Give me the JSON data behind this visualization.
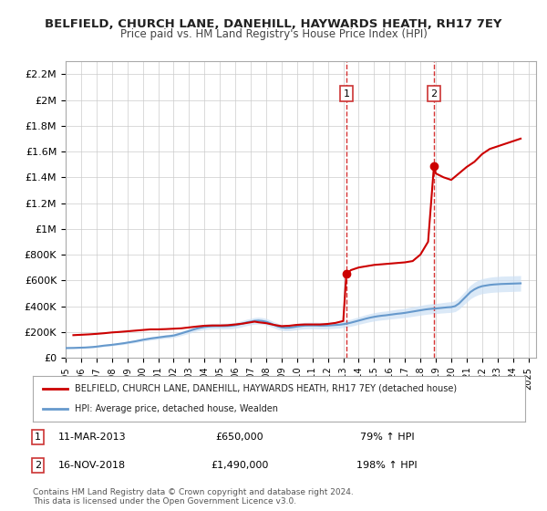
{
  "title": "BELFIELD, CHURCH LANE, DANEHILL, HAYWARDS HEATH, RH17 7EY",
  "subtitle": "Price paid vs. HM Land Registry's House Price Index (HPI)",
  "legend_label_red": "BELFIELD, CHURCH LANE, DANEHILL, HAYWARDS HEATH, RH17 7EY (detached house)",
  "legend_label_blue": "HPI: Average price, detached house, Wealden",
  "annotation1_label": "1",
  "annotation1_date": "11-MAR-2013",
  "annotation1_price": "£650,000",
  "annotation1_hpi": "79% ↑ HPI",
  "annotation2_label": "2",
  "annotation2_date": "16-NOV-2018",
  "annotation2_price": "£1,490,000",
  "annotation2_hpi": "198% ↑ HPI",
  "copyright": "Contains HM Land Registry data © Crown copyright and database right 2024.\nThis data is licensed under the Open Government Licence v3.0.",
  "xmin": 1995.0,
  "xmax": 2025.5,
  "ymin": 0,
  "ymax": 2300000,
  "yticks": [
    0,
    200000,
    400000,
    600000,
    800000,
    1000000,
    1200000,
    1400000,
    1600000,
    1800000,
    2000000,
    2200000
  ],
  "ytick_labels": [
    "£0",
    "£200K",
    "£400K",
    "£600K",
    "£800K",
    "£1M",
    "£1.2M",
    "£1.4M",
    "£1.6M",
    "£1.8M",
    "£2M",
    "£2.2M"
  ],
  "xticks": [
    1995,
    1996,
    1997,
    1998,
    1999,
    2000,
    2001,
    2002,
    2003,
    2004,
    2005,
    2006,
    2007,
    2008,
    2009,
    2010,
    2011,
    2012,
    2013,
    2014,
    2015,
    2016,
    2017,
    2018,
    2019,
    2020,
    2021,
    2022,
    2023,
    2024,
    2025
  ],
  "sale1_x": 2013.2,
  "sale1_y": 650000,
  "sale2_x": 2018.88,
  "sale2_y": 1490000,
  "red_color": "#cc0000",
  "blue_color": "#6699cc",
  "blue_fill_color": "#cce0f5",
  "vline_color": "#cc0000",
  "background_color": "#ffffff",
  "grid_color": "#cccccc",
  "hpi_x": [
    1995.0,
    1995.25,
    1995.5,
    1995.75,
    1996.0,
    1996.25,
    1996.5,
    1996.75,
    1997.0,
    1997.25,
    1997.5,
    1997.75,
    1998.0,
    1998.25,
    1998.5,
    1998.75,
    1999.0,
    1999.25,
    1999.5,
    1999.75,
    2000.0,
    2000.25,
    2000.5,
    2000.75,
    2001.0,
    2001.25,
    2001.5,
    2001.75,
    2002.0,
    2002.25,
    2002.5,
    2002.75,
    2003.0,
    2003.25,
    2003.5,
    2003.75,
    2004.0,
    2004.25,
    2004.5,
    2004.75,
    2005.0,
    2005.25,
    2005.5,
    2005.75,
    2006.0,
    2006.25,
    2006.5,
    2006.75,
    2007.0,
    2007.25,
    2007.5,
    2007.75,
    2008.0,
    2008.25,
    2008.5,
    2008.75,
    2009.0,
    2009.25,
    2009.5,
    2009.75,
    2010.0,
    2010.25,
    2010.5,
    2010.75,
    2011.0,
    2011.25,
    2011.5,
    2011.75,
    2012.0,
    2012.25,
    2012.5,
    2012.75,
    2013.0,
    2013.25,
    2013.5,
    2013.75,
    2014.0,
    2014.25,
    2014.5,
    2014.75,
    2015.0,
    2015.25,
    2015.5,
    2015.75,
    2016.0,
    2016.25,
    2016.5,
    2016.75,
    2017.0,
    2017.25,
    2017.5,
    2017.75,
    2018.0,
    2018.25,
    2018.5,
    2018.75,
    2019.0,
    2019.25,
    2019.5,
    2019.75,
    2020.0,
    2020.25,
    2020.5,
    2020.75,
    2021.0,
    2021.25,
    2021.5,
    2021.75,
    2022.0,
    2022.25,
    2022.5,
    2022.75,
    2023.0,
    2023.25,
    2023.5,
    2023.75,
    2024.0,
    2024.25,
    2024.5
  ],
  "hpi_y": [
    75000,
    75500,
    76000,
    77000,
    78000,
    79000,
    81000,
    83000,
    86000,
    90000,
    94000,
    97000,
    100000,
    104000,
    108000,
    112000,
    117000,
    122000,
    127000,
    133000,
    139000,
    144000,
    149000,
    153000,
    157000,
    161000,
    165000,
    168000,
    172000,
    180000,
    189000,
    198000,
    207000,
    217000,
    226000,
    233000,
    238000,
    242000,
    244000,
    245000,
    245000,
    245000,
    246000,
    248000,
    252000,
    258000,
    266000,
    274000,
    280000,
    286000,
    288000,
    285000,
    279000,
    268000,
    255000,
    243000,
    235000,
    232000,
    233000,
    237000,
    242000,
    246000,
    249000,
    250000,
    250000,
    250000,
    249000,
    249000,
    250000,
    252000,
    254000,
    256000,
    260000,
    265000,
    272000,
    280000,
    288000,
    296000,
    304000,
    311000,
    317000,
    322000,
    326000,
    329000,
    333000,
    337000,
    341000,
    344000,
    348000,
    353000,
    358000,
    363000,
    368000,
    373000,
    377000,
    380000,
    382000,
    385000,
    388000,
    391000,
    393000,
    400000,
    420000,
    450000,
    480000,
    510000,
    530000,
    545000,
    555000,
    560000,
    565000,
    568000,
    570000,
    572000,
    573000,
    574000,
    575000,
    576000,
    577000
  ],
  "hpi_upper": [
    80000,
    80500,
    81200,
    82200,
    83500,
    84500,
    87000,
    89500,
    93000,
    97000,
    101500,
    105000,
    108000,
    112000,
    117000,
    121500,
    127000,
    132000,
    137500,
    144000,
    151000,
    156000,
    162000,
    166000,
    171000,
    175000,
    179000,
    182500,
    187000,
    196000,
    206000,
    215500,
    225500,
    236000,
    245500,
    253000,
    258500,
    263000,
    265500,
    266500,
    267000,
    267000,
    268000,
    271000,
    275000,
    282000,
    290000,
    299000,
    305500,
    312000,
    314500,
    311000,
    305000,
    293000,
    279000,
    267000,
    258000,
    255000,
    256000,
    260500,
    266000,
    270500,
    274000,
    275000,
    275500,
    275500,
    274000,
    274000,
    275500,
    277500,
    280000,
    282000,
    286000,
    292000,
    299500,
    308500,
    317000,
    326000,
    335000,
    342500,
    349500,
    354500,
    359000,
    362000,
    366500,
    371500,
    376000,
    379500,
    383500,
    389500,
    395000,
    400500,
    406000,
    411500,
    416000,
    419000,
    421000,
    424500,
    428500,
    432000,
    434500,
    442500,
    464000,
    496500,
    529000,
    562500,
    585000,
    601500,
    613000,
    618500,
    624500,
    628000,
    630500,
    632500,
    633500,
    634500,
    635500,
    636500,
    637500
  ],
  "hpi_lower": [
    70000,
    70500,
    70800,
    71800,
    72500,
    73500,
    75000,
    76500,
    79000,
    83000,
    86500,
    89000,
    92000,
    96000,
    99000,
    102500,
    107000,
    112000,
    116500,
    122000,
    127000,
    132000,
    136000,
    140000,
    143000,
    147000,
    151000,
    153500,
    157000,
    164000,
    172000,
    180500,
    188500,
    198000,
    206500,
    213000,
    217500,
    221000,
    222500,
    223500,
    223000,
    223000,
    224000,
    225000,
    229000,
    234000,
    242000,
    249000,
    254500,
    260000,
    261500,
    259000,
    253000,
    243000,
    231000,
    219000,
    212000,
    209000,
    210000,
    213500,
    218000,
    221500,
    224000,
    225000,
    224500,
    224500,
    224000,
    224000,
    224500,
    226500,
    228000,
    230000,
    234000,
    238000,
    244500,
    251500,
    259000,
    266000,
    273000,
    279500,
    284500,
    289500,
    293000,
    296000,
    299500,
    302500,
    306000,
    308500,
    312500,
    316500,
    321000,
    325500,
    330000,
    334500,
    338000,
    341000,
    343000,
    345500,
    347500,
    350000,
    351500,
    357500,
    376000,
    403500,
    431000,
    457500,
    475000,
    488500,
    497000,
    501500,
    505500,
    508000,
    509500,
    511500,
    512500,
    513500,
    514500,
    515500,
    516500
  ],
  "property_x": [
    1995.5,
    1996.0,
    1996.5,
    1997.0,
    1997.5,
    1997.75,
    1998.0,
    1998.5,
    1999.0,
    1999.5,
    2000.0,
    2000.5,
    2001.0,
    2001.5,
    2002.0,
    2002.5,
    2003.0,
    2003.5,
    2004.0,
    2004.5,
    2005.0,
    2005.5,
    2006.0,
    2006.5,
    2007.0,
    2007.25,
    2007.5,
    2008.0,
    2008.5,
    2009.0,
    2009.5,
    2010.0,
    2010.5,
    2011.0,
    2011.5,
    2012.0,
    2012.5,
    2013.0,
    2013.2,
    2013.5,
    2014.0,
    2014.5,
    2015.0,
    2015.5,
    2016.0,
    2016.5,
    2017.0,
    2017.5,
    2018.0,
    2018.5,
    2018.88,
    2019.0,
    2019.5,
    2020.0,
    2020.5,
    2021.0,
    2021.5,
    2022.0,
    2022.5,
    2023.0,
    2023.5,
    2024.0,
    2024.5
  ],
  "property_y": [
    175000,
    178000,
    181000,
    185000,
    190000,
    193000,
    196000,
    200000,
    205000,
    210000,
    215000,
    220000,
    220000,
    222000,
    225000,
    228000,
    235000,
    242000,
    248000,
    250000,
    250000,
    252000,
    258000,
    265000,
    275000,
    280000,
    275000,
    268000,
    255000,
    245000,
    248000,
    255000,
    258000,
    258000,
    258000,
    262000,
    270000,
    285000,
    650000,
    680000,
    700000,
    710000,
    720000,
    725000,
    730000,
    735000,
    740000,
    750000,
    800000,
    900000,
    1490000,
    1430000,
    1400000,
    1380000,
    1430000,
    1480000,
    1520000,
    1580000,
    1620000,
    1640000,
    1660000,
    1680000,
    1700000
  ]
}
